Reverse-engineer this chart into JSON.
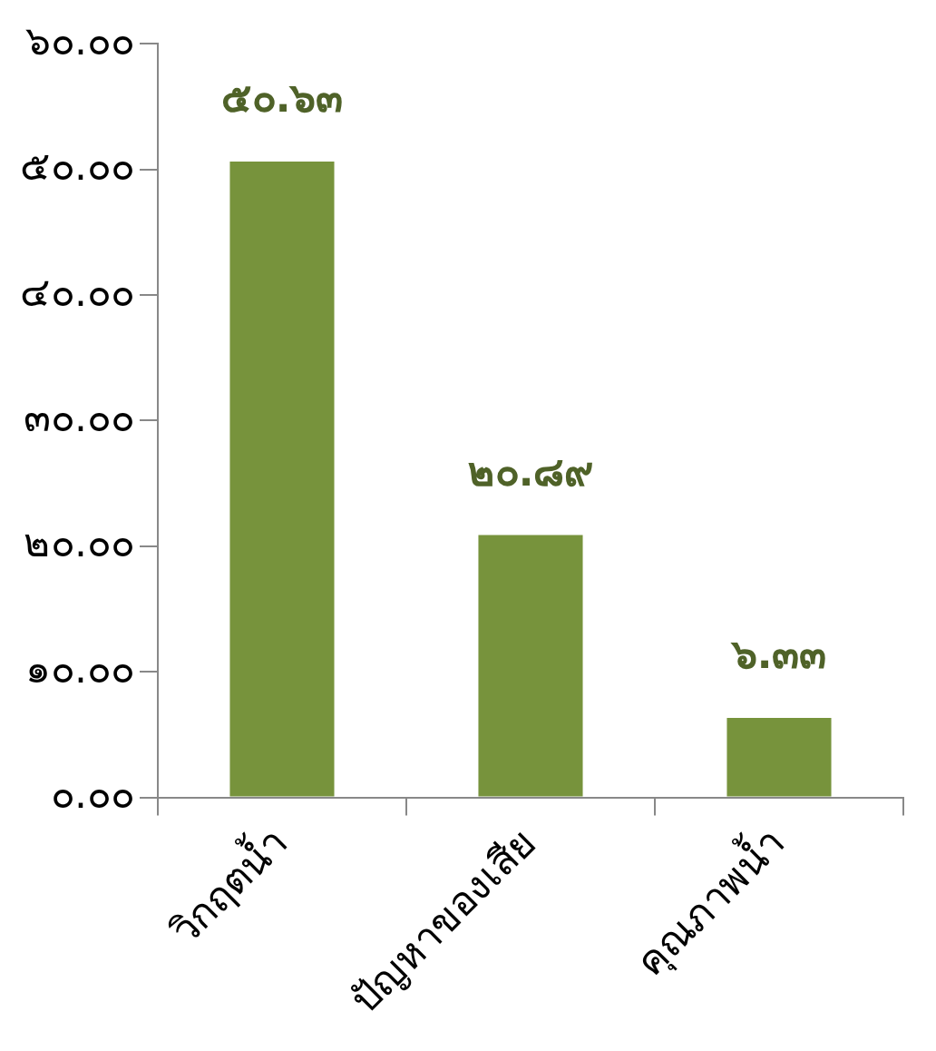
{
  "chart_data": {
    "type": "bar",
    "categories": [
      "วิกฤตน้ำ",
      "ปัญหาของเสีย",
      "คุณภาพน้ำ"
    ],
    "values": [
      50.63,
      20.89,
      6.33
    ],
    "color": "#77933c",
    "value_labels": [
      "๕๐.๖๓",
      "๒๐.๘๙",
      "๖.๓๓"
    ],
    "ylim": [
      0,
      60
    ],
    "yticks": [
      {
        "value": 0,
        "label": "๐.๐๐"
      },
      {
        "value": 10,
        "label": "๑๐.๐๐"
      },
      {
        "value": 20,
        "label": "๒๐.๐๐"
      },
      {
        "value": 30,
        "label": "๓๐.๐๐"
      },
      {
        "value": 40,
        "label": "๔๐.๐๐"
      },
      {
        "value": 50,
        "label": "๕๐.๐๐"
      },
      {
        "value": 60,
        "label": "๖๐.๐๐"
      }
    ],
    "grid": false,
    "legend": false
  }
}
